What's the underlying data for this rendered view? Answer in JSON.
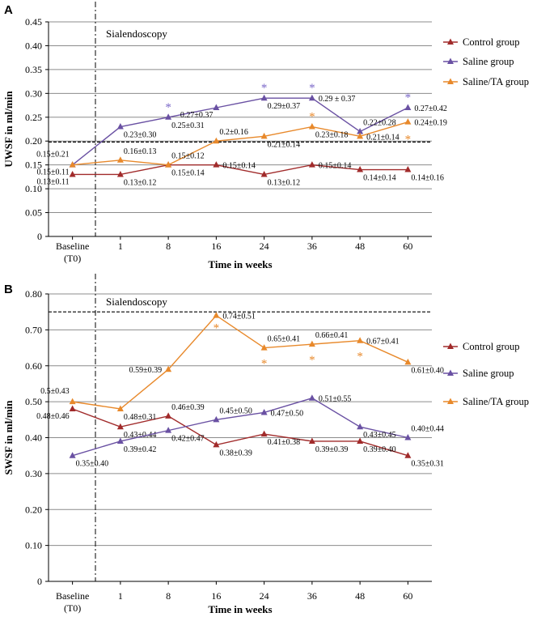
{
  "colors": {
    "control": "#a12b2b",
    "saline": "#6a51a3",
    "saline_ta": "#e8892b",
    "grid": "#8c8c8c",
    "star_saline": "#7b68c8",
    "star_saline_ta": "#e8892b"
  },
  "chart_data": [
    {
      "type": "line",
      "panel": "A",
      "ylabel": "UWSF in ml/min",
      "xlabel": "Time in weeks",
      "annotation": "Sialendoscopy",
      "categories": [
        "Baseline\n(T0)",
        "1",
        "8",
        "16",
        "24",
        "36",
        "48",
        "60"
      ],
      "ylim": [
        0,
        0.45
      ],
      "yticks": [
        0,
        0.05,
        0.1,
        0.15,
        0.2,
        0.25,
        0.3,
        0.35,
        0.4,
        0.45
      ],
      "ytick_labels": [
        "0",
        "0.05",
        "0.10",
        "0.15",
        "0.20",
        "0.25",
        "0.30",
        "0.35",
        "0.40",
        "0.45"
      ],
      "reference_line": 0.198,
      "legend": {
        "position": "right",
        "entries": [
          "Control group",
          "Saline group",
          "Saline/TA group"
        ]
      },
      "series": [
        {
          "key": "control",
          "name": "Control group",
          "values": [
            0.13,
            0.13,
            0.15,
            0.15,
            0.13,
            0.15,
            0.14,
            0.14
          ],
          "labels": [
            "0.13±0.11",
            "0.13±0.12",
            "0.15±0.14",
            "0.15±0.14",
            "0.13±0.12",
            "0.15±0.14",
            "0.14±0.14",
            "0.14±0.16"
          ],
          "label_pos": [
            "left-below",
            "below",
            "below",
            "right",
            "below",
            "right",
            "below",
            "below"
          ],
          "stars": []
        },
        {
          "key": "saline",
          "name": "Saline group",
          "values": [
            0.15,
            0.23,
            0.25,
            0.27,
            0.29,
            0.29,
            0.22,
            0.27
          ],
          "labels": [
            "0.15±0.11",
            "0.23±0.30",
            "0.25±0.31",
            "0.27±0.37",
            "0.29±0.37",
            "0.29 ± 0.37",
            "0.22±0.28",
            "0.27±0.42"
          ],
          "label_pos": [
            "left-below",
            "below",
            "below",
            "left-below",
            "below",
            "right",
            "above",
            "right"
          ],
          "stars": [
            2,
            4,
            5,
            7
          ]
        },
        {
          "key": "saline_ta",
          "name": "Saline/TA group",
          "values": [
            0.15,
            0.16,
            0.15,
            0.2,
            0.21,
            0.23,
            0.21,
            0.24
          ],
          "labels": [
            "0.15±0.21",
            "0.16±0.13",
            "0.15±0.12",
            "0.2±0.16",
            "0.21±0.14",
            "0.23±0.18",
            "0.21±0.14",
            "0.24±0.19"
          ],
          "label_pos": [
            "left-above",
            "above",
            "above",
            "above",
            "below",
            "below",
            "right",
            "right"
          ],
          "stars": [
            5,
            7
          ]
        }
      ]
    },
    {
      "type": "line",
      "panel": "B",
      "ylabel": "SWSF in ml/min",
      "xlabel": "Time in weeks",
      "annotation": "Sialendoscopy",
      "categories": [
        "Baseline\n(T0)",
        "1",
        "8",
        "16",
        "24",
        "36",
        "48",
        "60"
      ],
      "ylim": [
        0,
        0.8
      ],
      "yticks": [
        0,
        0.1,
        0.2,
        0.3,
        0.4,
        0.5,
        0.6,
        0.7,
        0.8
      ],
      "ytick_labels": [
        "0",
        "0.10",
        "0.20",
        "0.30",
        "0.40",
        "0.50",
        "0.60",
        "0.70",
        "0.80"
      ],
      "reference_line": 0.75,
      "legend": {
        "position": "right",
        "entries": [
          "Control group",
          "Saline group",
          "Saline/TA group"
        ]
      },
      "series": [
        {
          "key": "control",
          "name": "Control group",
          "values": [
            0.48,
            0.43,
            0.46,
            0.38,
            0.41,
            0.39,
            0.39,
            0.35
          ],
          "labels": [
            "0.48±0.46",
            "0.43±0.44",
            "0.46±0.39",
            "0.38±0.39",
            "0.41±0.38",
            "0.39±0.39",
            "0.39±0.40",
            "0.35±0.31"
          ],
          "label_pos": [
            "left-below",
            "below",
            "above",
            "below",
            "below",
            "below",
            "below",
            "below"
          ],
          "stars": []
        },
        {
          "key": "saline",
          "name": "Saline group",
          "values": [
            0.35,
            0.39,
            0.42,
            0.45,
            0.47,
            0.51,
            0.43,
            0.4
          ],
          "labels": [
            "0.35±0.40",
            "0.39±0.42",
            "0.42±0.47",
            "0.45±0.50",
            "0.47±0.50",
            "0.51±0.55",
            "0.43±0.45",
            "0.40±0.44"
          ],
          "label_pos": [
            "below",
            "below",
            "below",
            "above",
            "right",
            "right",
            "below",
            "above"
          ],
          "stars": []
        },
        {
          "key": "saline_ta",
          "name": "Saline/TA group",
          "values": [
            0.5,
            0.48,
            0.59,
            0.74,
            0.65,
            0.66,
            0.67,
            0.61
          ],
          "labels": [
            "0.5±0.43",
            "0.48±0.31",
            "0.59±0.39",
            "0.74±0.51",
            "0.65±0.41",
            "0.66±0.41",
            "0.67±0.41",
            "0.61±0.40"
          ],
          "label_pos": [
            "left-above",
            "below",
            "left",
            "right",
            "above",
            "above",
            "right",
            "below"
          ],
          "stars": [
            3,
            4,
            5,
            6
          ]
        }
      ]
    }
  ]
}
